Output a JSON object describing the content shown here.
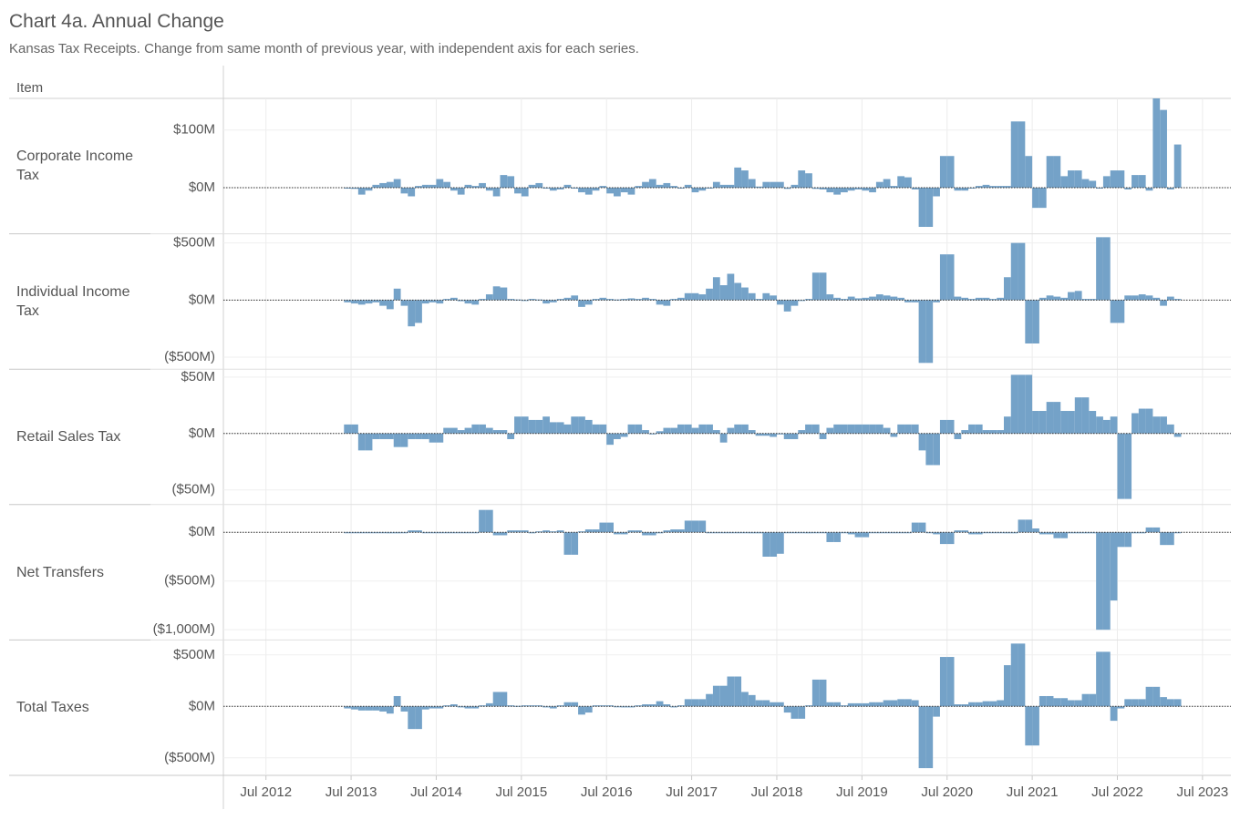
{
  "chart_data": {
    "type": "bar",
    "title": "Chart 4a. Annual Change",
    "subtitle": "Kansas Tax Receipts. Change from same month of previous year, with independent axis for each series.",
    "row_header": "Item",
    "color": "#74a2c8",
    "grid": true,
    "xlim": [
      "2012-01",
      "2023-11"
    ],
    "xticks": [
      {
        "value": "2012-07",
        "label": "Jul 2012"
      },
      {
        "value": "2013-07",
        "label": "Jul 2013"
      },
      {
        "value": "2014-07",
        "label": "Jul 2014"
      },
      {
        "value": "2015-07",
        "label": "Jul 2015"
      },
      {
        "value": "2016-07",
        "label": "Jul 2016"
      },
      {
        "value": "2017-07",
        "label": "Jul 2017"
      },
      {
        "value": "2018-07",
        "label": "Jul 2018"
      },
      {
        "value": "2019-07",
        "label": "Jul 2019"
      },
      {
        "value": "2020-07",
        "label": "Jul 2020"
      },
      {
        "value": "2021-07",
        "label": "Jul 2021"
      },
      {
        "value": "2022-07",
        "label": "Jul 2022"
      },
      {
        "value": "2023-07",
        "label": "Jul 2023"
      }
    ],
    "x": [
      "2013-06",
      "2013-07",
      "2013-08",
      "2013-09",
      "2013-10",
      "2013-11",
      "2013-12",
      "2014-01",
      "2014-02",
      "2014-03",
      "2014-04",
      "2014-05",
      "2014-06",
      "2014-07",
      "2014-08",
      "2014-09",
      "2014-10",
      "2014-11",
      "2014-12",
      "2015-01",
      "2015-02",
      "2015-03",
      "2015-04",
      "2015-05",
      "2015-06",
      "2015-07",
      "2015-08",
      "2015-09",
      "2015-10",
      "2015-11",
      "2015-12",
      "2016-01",
      "2016-02",
      "2016-03",
      "2016-04",
      "2016-05",
      "2016-06",
      "2016-07",
      "2016-08",
      "2016-09",
      "2016-10",
      "2016-11",
      "2016-12",
      "2017-01",
      "2017-02",
      "2017-03",
      "2017-04",
      "2017-05",
      "2017-06",
      "2017-07",
      "2017-08",
      "2017-09",
      "2017-10",
      "2017-11",
      "2017-12",
      "2018-01",
      "2018-02",
      "2018-03",
      "2018-04",
      "2018-05",
      "2018-06",
      "2018-07",
      "2018-08",
      "2018-09",
      "2018-10",
      "2018-11",
      "2018-12",
      "2019-01",
      "2019-02",
      "2019-03",
      "2019-04",
      "2019-05",
      "2019-06",
      "2019-07",
      "2019-08",
      "2019-09",
      "2019-10",
      "2019-11",
      "2019-12",
      "2020-01",
      "2020-02",
      "2020-03",
      "2020-04",
      "2020-05",
      "2020-06",
      "2020-07",
      "2020-08",
      "2020-09",
      "2020-10",
      "2020-11",
      "2020-12",
      "2021-01",
      "2021-02",
      "2021-03",
      "2021-04",
      "2021-05",
      "2021-06",
      "2021-07",
      "2021-08",
      "2021-09",
      "2021-10",
      "2021-11",
      "2021-12",
      "2022-01",
      "2022-02",
      "2022-03",
      "2022-04",
      "2022-05",
      "2022-06",
      "2022-07",
      "2022-08",
      "2022-09",
      "2022-10",
      "2022-11",
      "2022-12",
      "2023-01",
      "2023-02",
      "2023-03"
    ],
    "panels": [
      {
        "name": "Corporate Income Tax",
        "ylim": [
          -80,
          155
        ],
        "yticks": [
          {
            "value": 0,
            "label": "$0M"
          },
          {
            "value": 100,
            "label": "$100M"
          }
        ],
        "values": [
          0,
          -2,
          -12,
          -5,
          5,
          8,
          10,
          15,
          -10,
          -15,
          3,
          5,
          5,
          15,
          10,
          -5,
          -12,
          5,
          3,
          8,
          -5,
          -15,
          22,
          20,
          -10,
          -15,
          5,
          8,
          0,
          -5,
          -3,
          5,
          0,
          -8,
          -12,
          -5,
          3,
          -10,
          -15,
          -8,
          -12,
          3,
          10,
          15,
          5,
          8,
          3,
          0,
          5,
          -8,
          -5,
          0,
          10,
          5,
          5,
          35,
          30,
          15,
          2,
          10,
          10,
          10,
          -2,
          5,
          30,
          25,
          -2,
          -3,
          -8,
          -12,
          -8,
          -5,
          -3,
          -5,
          -8,
          10,
          15,
          3,
          20,
          18,
          -3,
          -68,
          -68,
          -15,
          55,
          55,
          -5,
          -5,
          0,
          3,
          5,
          3,
          3,
          3,
          115,
          115,
          55,
          -35,
          -35,
          55,
          55,
          20,
          30,
          30,
          15,
          12,
          0,
          20,
          30,
          30,
          -3,
          22,
          22,
          -5,
          155,
          135,
          -3,
          75
        ]
      },
      {
        "name": "Individual Income Tax",
        "ylim": [
          -605,
          580
        ],
        "yticks": [
          {
            "value": -500,
            "label": "($500M)"
          },
          {
            "value": 0,
            "label": "$0M"
          },
          {
            "value": 500,
            "label": "$500M"
          }
        ],
        "values": [
          -20,
          -30,
          -40,
          -30,
          -20,
          -50,
          -80,
          100,
          -50,
          -230,
          -200,
          -30,
          -20,
          -30,
          10,
          20,
          -10,
          -30,
          -40,
          10,
          50,
          120,
          110,
          10,
          5,
          -5,
          10,
          5,
          -30,
          -20,
          10,
          20,
          40,
          -60,
          -40,
          10,
          20,
          10,
          5,
          10,
          15,
          10,
          20,
          10,
          -40,
          -50,
          10,
          20,
          60,
          60,
          50,
          100,
          200,
          130,
          230,
          150,
          110,
          60,
          10,
          60,
          40,
          -40,
          -100,
          -50,
          0,
          10,
          240,
          240,
          50,
          20,
          10,
          30,
          15,
          20,
          30,
          50,
          40,
          30,
          20,
          -20,
          -20,
          -550,
          -550,
          -20,
          400,
          400,
          30,
          20,
          10,
          20,
          20,
          10,
          20,
          200,
          500,
          500,
          -380,
          -380,
          20,
          40,
          30,
          20,
          70,
          80,
          10,
          10,
          550,
          550,
          -200,
          -200,
          40,
          40,
          50,
          40,
          20,
          -50,
          30,
          10
        ]
      },
      {
        "name": "Retail Sales Tax",
        "ylim": [
          -63,
          57
        ],
        "yticks": [
          {
            "value": -50,
            "label": "($50M)"
          },
          {
            "value": 0,
            "label": "$0M"
          },
          {
            "value": 50,
            "label": "$50M"
          }
        ],
        "values": [
          8,
          8,
          -15,
          -15,
          -5,
          -5,
          -5,
          -12,
          -12,
          -5,
          -5,
          -5,
          -8,
          -8,
          5,
          5,
          3,
          5,
          8,
          8,
          5,
          3,
          3,
          -5,
          15,
          15,
          12,
          12,
          15,
          10,
          10,
          8,
          15,
          15,
          12,
          8,
          8,
          -10,
          -5,
          -3,
          8,
          8,
          3,
          0,
          2,
          5,
          5,
          8,
          8,
          5,
          8,
          8,
          3,
          -8,
          5,
          8,
          8,
          3,
          -2,
          -2,
          -3,
          0,
          -5,
          -5,
          3,
          8,
          8,
          -5,
          5,
          8,
          8,
          8,
          8,
          8,
          8,
          8,
          5,
          -3,
          8,
          8,
          8,
          -15,
          -28,
          -28,
          12,
          12,
          -5,
          3,
          8,
          8,
          3,
          3,
          3,
          15,
          52,
          52,
          52,
          20,
          20,
          28,
          28,
          20,
          20,
          32,
          32,
          20,
          15,
          12,
          15,
          -58,
          -58,
          18,
          22,
          22,
          15,
          15,
          8,
          -3
        ]
      },
      {
        "name": "Net Transfers",
        "ylim": [
          -1105,
          285
        ],
        "yticks": [
          {
            "value": -1000,
            "label": "($1,000M)"
          },
          {
            "value": -500,
            "label": "($500M)"
          },
          {
            "value": 0,
            "label": "$0M"
          }
        ],
        "values": [
          0,
          0,
          -5,
          -5,
          -5,
          -5,
          -10,
          -10,
          -5,
          20,
          20,
          0,
          0,
          -5,
          -5,
          0,
          0,
          0,
          0,
          230,
          230,
          -30,
          -30,
          20,
          20,
          20,
          -10,
          10,
          20,
          10,
          20,
          -230,
          -230,
          10,
          30,
          30,
          100,
          100,
          -20,
          -20,
          20,
          20,
          -30,
          -30,
          -10,
          20,
          30,
          30,
          120,
          120,
          120,
          0,
          0,
          0,
          0,
          0,
          0,
          -10,
          -10,
          -250,
          -250,
          -220,
          0,
          0,
          0,
          -10,
          0,
          0,
          -100,
          -100,
          0,
          -20,
          -50,
          -50,
          0,
          0,
          0,
          0,
          0,
          0,
          100,
          100,
          0,
          -20,
          -120,
          -120,
          20,
          20,
          -20,
          -20,
          0,
          0,
          0,
          -10,
          -10,
          130,
          130,
          40,
          -20,
          -20,
          -60,
          -60,
          -10,
          -10,
          -10,
          -10,
          -1000,
          -1000,
          -700,
          -150,
          -150,
          -10,
          -10,
          50,
          50,
          -130,
          -130,
          -5
        ]
      },
      {
        "name": "Total Taxes",
        "ylim": [
          -670,
          645
        ],
        "yticks": [
          {
            "value": -500,
            "label": "($500M)"
          },
          {
            "value": 0,
            "label": "$0M"
          },
          {
            "value": 500,
            "label": "$500M"
          }
        ],
        "values": [
          -20,
          -30,
          -40,
          -40,
          -40,
          -50,
          -70,
          100,
          -50,
          -220,
          -220,
          -30,
          -20,
          -20,
          10,
          20,
          -10,
          -20,
          -20,
          10,
          30,
          140,
          140,
          10,
          5,
          10,
          10,
          10,
          -10,
          -20,
          10,
          40,
          40,
          -80,
          -60,
          10,
          10,
          10,
          0,
          -10,
          -10,
          10,
          20,
          20,
          50,
          20,
          -10,
          10,
          70,
          70,
          70,
          120,
          200,
          200,
          290,
          290,
          140,
          110,
          60,
          60,
          40,
          40,
          -60,
          -120,
          -120,
          10,
          260,
          260,
          40,
          40,
          10,
          30,
          30,
          30,
          40,
          40,
          60,
          60,
          70,
          70,
          60,
          -600,
          -600,
          -100,
          480,
          480,
          20,
          20,
          40,
          40,
          50,
          50,
          60,
          400,
          610,
          610,
          -380,
          -380,
          100,
          100,
          80,
          80,
          60,
          60,
          120,
          120,
          530,
          530,
          -140,
          -20,
          70,
          70,
          70,
          190,
          190,
          90,
          70,
          70
        ]
      }
    ]
  }
}
